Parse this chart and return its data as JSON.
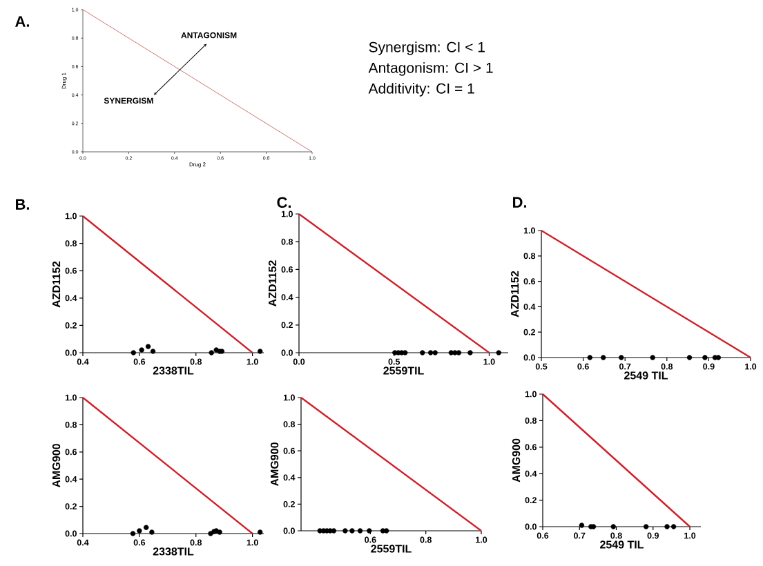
{
  "chart_data": [
    {
      "type": "line",
      "title": "A.",
      "xlabel": "Drug 2",
      "ylabel": "Drug 1",
      "xlim": [
        0,
        1
      ],
      "ylim": [
        0,
        1
      ],
      "xticks": [
        {
          "value": 0,
          "label": "0.0"
        },
        {
          "value": 0.2,
          "label": "0.2"
        },
        {
          "value": 0.4,
          "label": "0.4"
        },
        {
          "value": 0.6,
          "label": "0.6"
        },
        {
          "value": 0.8,
          "label": "0.8"
        },
        {
          "value": 1,
          "label": "1.0"
        }
      ],
      "yticks": [
        {
          "value": 0,
          "label": "0.0"
        },
        {
          "value": 0.2,
          "label": "0.2"
        },
        {
          "value": 0.4,
          "label": "0.4"
        },
        {
          "value": 0.6,
          "label": "0.6"
        },
        {
          "value": 0.8,
          "label": "0.8"
        },
        {
          "value": 1,
          "label": "1.0"
        }
      ],
      "series": [
        {
          "x": [
            0,
            1
          ],
          "values": [
            1,
            0
          ],
          "color": "#c0504d"
        }
      ],
      "annotations": [
        "ANTAGONISM",
        "SYNERGISM"
      ]
    },
    {
      "type": "other",
      "annotations": [
        "Synergism: CI < 1",
        "Antagonism: CI > 1",
        "Additivity: CI = 1"
      ]
    },
    {
      "type": "scatter",
      "title": "B.",
      "xlabel": "2338TIL",
      "ylabel": "AZD1152",
      "xlim": [
        0.4,
        1.04
      ],
      "ylim": [
        0,
        1
      ],
      "xticks": [
        0.4,
        0.6,
        0.8,
        {
          "value": 1,
          "label": "1.0"
        }
      ],
      "yticks": [
        {
          "value": 0,
          "label": "0.0"
        },
        0.2,
        0.4,
        0.6,
        0.8,
        {
          "value": 1,
          "label": "1.0"
        }
      ],
      "series": [
        {
          "type": "line",
          "x": [
            0.4,
            1.0
          ],
          "values": [
            1,
            0
          ],
          "color": "#d0202a"
        },
        {
          "x": [
            0.579,
            0.608,
            0.631,
            0.648,
            0.855,
            0.872,
            0.884,
            0.892,
            1.027
          ],
          "values": [
            0,
            0.02,
            0.045,
            0.01,
            0,
            0.02,
            0.01,
            0.01,
            0.01
          ],
          "color": "#000000",
          "marker": "circle"
        }
      ]
    },
    {
      "type": "scatter",
      "title": "C.",
      "xlabel": "2559TIL",
      "ylabel": "AZD1152",
      "xlim": [
        0,
        1.1
      ],
      "ylim": [
        0,
        1
      ],
      "xticks": [
        {
          "value": 0,
          "label": "0.0"
        },
        0.5,
        {
          "value": 1,
          "label": "1.0"
        }
      ],
      "yticks": [
        {
          "value": 0,
          "label": "0.0"
        },
        0.2,
        0.4,
        0.6,
        0.8,
        {
          "value": 1,
          "label": "1.0"
        }
      ],
      "series": [
        {
          "type": "line",
          "x": [
            0,
            1.0
          ],
          "values": [
            1,
            0
          ],
          "color": "#d0202a"
        },
        {
          "x": [
            0.504,
            0.522,
            0.54,
            0.558,
            0.649,
            0.692,
            0.716,
            0.8,
            0.82,
            0.84,
            0.9,
            1.05
          ],
          "values": [
            0,
            0,
            0,
            0,
            0,
            0,
            0,
            0,
            0,
            0,
            0,
            0
          ],
          "color": "#000000",
          "marker": "circle"
        }
      ]
    },
    {
      "type": "scatter",
      "title": "D.",
      "xlabel": "2549 TIL",
      "ylabel": "AZD1152",
      "xlim": [
        0.5,
        1.0
      ],
      "ylim": [
        0,
        1
      ],
      "xticks": [
        0.5,
        0.6,
        0.7,
        0.8,
        0.9,
        {
          "value": 1,
          "label": "1.0"
        }
      ],
      "yticks": [
        {
          "value": 0,
          "label": "0.0"
        },
        0.2,
        0.4,
        0.6,
        0.8,
        {
          "value": 1,
          "label": "1.0"
        }
      ],
      "series": [
        {
          "type": "line",
          "x": [
            0.5,
            1.0
          ],
          "values": [
            1,
            0
          ],
          "color": "#d0202a"
        },
        {
          "x": [
            0.616,
            0.648,
            0.691,
            0.766,
            0.854,
            0.891,
            0.915,
            0.923
          ],
          "values": [
            0,
            0,
            0,
            0,
            0,
            0,
            0,
            0
          ],
          "color": "#000000",
          "marker": "circle"
        }
      ]
    },
    {
      "type": "scatter",
      "xlabel": "2338TIL",
      "ylabel": "AMG900",
      "xlim": [
        0.4,
        1.04
      ],
      "ylim": [
        0,
        1
      ],
      "xticks": [
        0.4,
        0.6,
        0.8,
        {
          "value": 1,
          "label": "1.0"
        }
      ],
      "yticks": [
        {
          "value": 0,
          "label": "0.0"
        },
        0.2,
        0.4,
        0.6,
        0.8,
        {
          "value": 1,
          "label": "1.0"
        }
      ],
      "series": [
        {
          "type": "line",
          "x": [
            0.4,
            1.0
          ],
          "values": [
            1,
            0
          ],
          "color": "#d0202a"
        },
        {
          "x": [
            0.577,
            0.6,
            0.624,
            0.644,
            0.852,
            0.864,
            0.872,
            0.884,
            1.027
          ],
          "values": [
            0,
            0.02,
            0.045,
            0.01,
            0,
            0.015,
            0.02,
            0.01,
            0.01
          ],
          "color": "#000000",
          "marker": "circle"
        }
      ]
    },
    {
      "type": "scatter",
      "xlabel": "2559TIL",
      "ylabel": "AMG900",
      "xlim": [
        0.35,
        1.0
      ],
      "ylim": [
        0,
        1
      ],
      "xticks": [
        0.6,
        0.8,
        {
          "value": 1,
          "label": "1.0"
        }
      ],
      "yticks": [
        {
          "value": 0,
          "label": "0.0"
        },
        0.2,
        0.4,
        0.6,
        0.8,
        {
          "value": 1,
          "label": "1.0"
        }
      ],
      "series": [
        {
          "type": "line",
          "x": [
            0.35,
            1.0
          ],
          "values": [
            1,
            0
          ],
          "color": "#d0202a"
        },
        {
          "x": [
            0.418,
            0.431,
            0.443,
            0.455,
            0.468,
            0.509,
            0.534,
            0.563,
            0.596,
            0.645,
            0.658
          ],
          "values": [
            0,
            0,
            0,
            0,
            0,
            0,
            0,
            0,
            0,
            0,
            0
          ],
          "color": "#000000",
          "marker": "circle"
        }
      ]
    },
    {
      "type": "scatter",
      "xlabel": "2549 TIL",
      "ylabel": "AMG900",
      "xlim": [
        0.6,
        1.03
      ],
      "ylim": [
        0,
        1
      ],
      "xticks": [
        0.6,
        0.7,
        0.8,
        0.9,
        {
          "value": 1,
          "label": "1.0"
        }
      ],
      "yticks": [
        {
          "value": 0,
          "label": "0.0"
        },
        0.2,
        0.4,
        0.6,
        0.8,
        {
          "value": 1,
          "label": "1.0"
        }
      ],
      "series": [
        {
          "type": "line",
          "x": [
            0.6,
            1.0
          ],
          "values": [
            1,
            0
          ],
          "color": "#d0202a"
        },
        {
          "x": [
            0.706,
            0.731,
            0.738,
            0.792,
            0.881,
            0.938,
            0.956
          ],
          "values": [
            0.01,
            0,
            0,
            0,
            0,
            0,
            0
          ],
          "color": "#000000",
          "marker": "circle"
        }
      ]
    }
  ]
}
